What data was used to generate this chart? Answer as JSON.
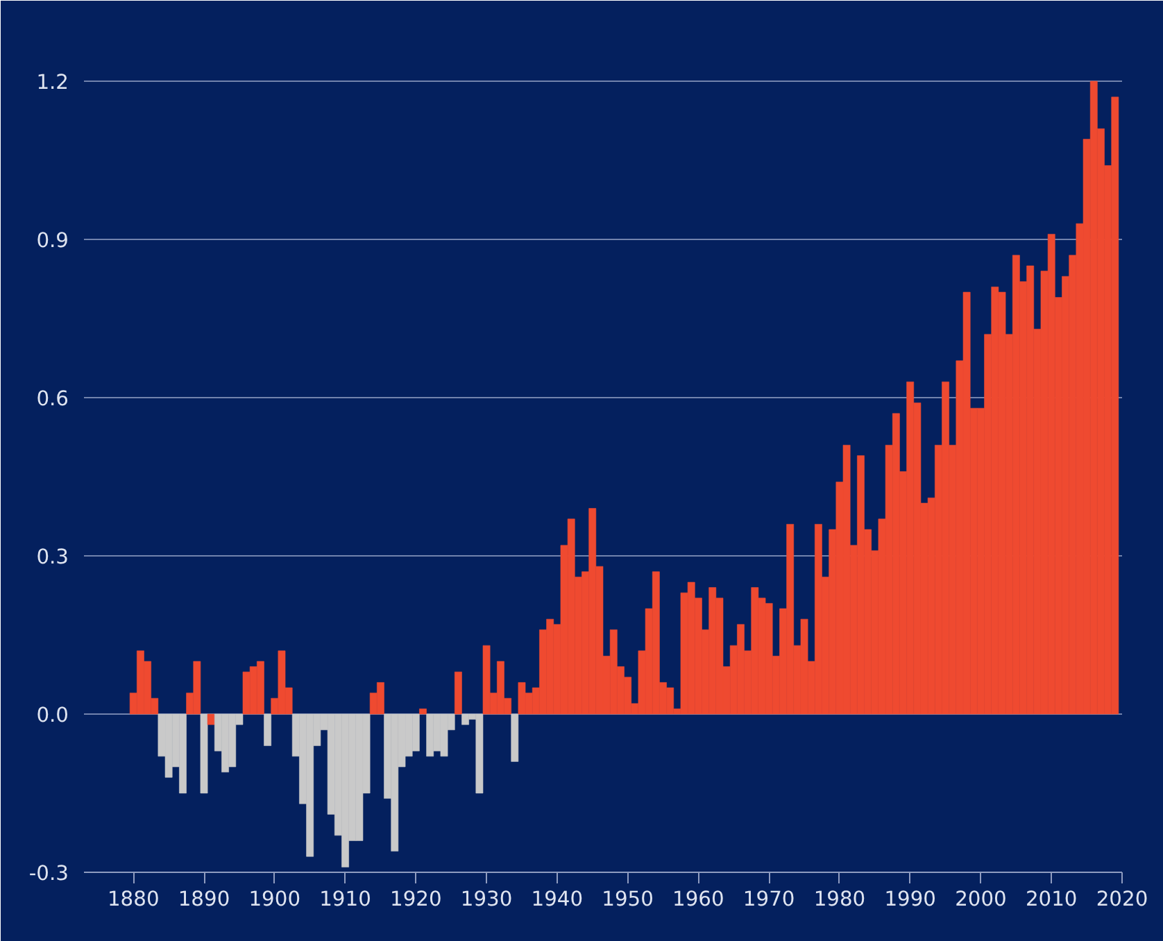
{
  "chart_data": {
    "type": "bar",
    "x": [
      1880,
      1881,
      1882,
      1883,
      1884,
      1885,
      1886,
      1887,
      1888,
      1889,
      1890,
      1891,
      1892,
      1893,
      1894,
      1895,
      1896,
      1897,
      1898,
      1899,
      1900,
      1901,
      1902,
      1903,
      1904,
      1905,
      1906,
      1907,
      1908,
      1909,
      1910,
      1911,
      1912,
      1913,
      1914,
      1915,
      1916,
      1917,
      1918,
      1919,
      1920,
      1921,
      1922,
      1923,
      1924,
      1925,
      1926,
      1927,
      1928,
      1929,
      1930,
      1931,
      1932,
      1933,
      1934,
      1935,
      1936,
      1937,
      1938,
      1939,
      1940,
      1941,
      1942,
      1943,
      1944,
      1945,
      1946,
      1947,
      1948,
      1949,
      1950,
      1951,
      1952,
      1953,
      1954,
      1955,
      1956,
      1957,
      1958,
      1959,
      1960,
      1961,
      1962,
      1963,
      1964,
      1965,
      1966,
      1967,
      1968,
      1969,
      1970,
      1971,
      1972,
      1973,
      1974,
      1975,
      1976,
      1977,
      1978,
      1979,
      1980,
      1981,
      1982,
      1983,
      1984,
      1985,
      1986,
      1987,
      1988,
      1989,
      1990,
      1991,
      1992,
      1993,
      1994,
      1995,
      1996,
      1997,
      1998,
      1999,
      2000,
      2001,
      2002,
      2003,
      2004,
      2005,
      2006,
      2007,
      2008,
      2009,
      2010,
      2011,
      2012,
      2013,
      2014,
      2015,
      2016,
      2017,
      2018,
      2019
    ],
    "values": [
      0.04,
      0.12,
      0.1,
      0.03,
      -0.08,
      -0.12,
      -0.1,
      -0.15,
      0.04,
      0.1,
      -0.15,
      -0.02,
      -0.07,
      -0.11,
      -0.1,
      -0.02,
      0.08,
      0.09,
      0.1,
      -0.06,
      0.03,
      0.12,
      0.05,
      -0.08,
      -0.17,
      -0.27,
      -0.06,
      -0.03,
      -0.19,
      -0.23,
      -0.29,
      -0.24,
      -0.24,
      -0.15,
      0.04,
      0.06,
      -0.16,
      -0.26,
      -0.1,
      -0.08,
      -0.07,
      0.01,
      -0.08,
      -0.07,
      -0.08,
      -0.03,
      0.08,
      -0.02,
      -0.01,
      -0.15,
      0.13,
      0.04,
      0.1,
      0.03,
      -0.09,
      0.06,
      0.04,
      0.05,
      0.16,
      0.18,
      0.17,
      0.32,
      0.37,
      0.26,
      0.27,
      0.39,
      0.28,
      0.11,
      0.16,
      0.09,
      0.07,
      0.02,
      0.12,
      0.2,
      0.27,
      0.06,
      0.05,
      0.01,
      0.23,
      0.25,
      0.22,
      0.16,
      0.24,
      0.22,
      0.09,
      0.13,
      0.17,
      0.12,
      0.24,
      0.22,
      0.21,
      0.11,
      0.2,
      0.36,
      0.13,
      0.18,
      0.1,
      0.36,
      0.26,
      0.35,
      0.44,
      0.51,
      0.32,
      0.49,
      0.35,
      0.31,
      0.37,
      0.51,
      0.57,
      0.46,
      0.63,
      0.59,
      0.4,
      0.41,
      0.51,
      0.63,
      0.51,
      0.67,
      0.8,
      0.58,
      0.58,
      0.72,
      0.81,
      0.8,
      0.72,
      0.87,
      0.82,
      0.85,
      0.73,
      0.84,
      0.91,
      0.79,
      0.83,
      0.87,
      0.93,
      1.09,
      1.2,
      1.11,
      1.04,
      1.17
    ],
    "colors": [
      "#ef4a30",
      "#ef4a30",
      "#ef4a30",
      "#ef4a30",
      "#c9c9c9",
      "#c9c9c9",
      "#c9c9c9",
      "#c9c9c9",
      "#ef4a30",
      "#ef4a30",
      "#c9c9c9",
      "#ef4a30",
      "#c9c9c9",
      "#c9c9c9",
      "#c9c9c9",
      "#c9c9c9",
      "#ef4a30",
      "#ef4a30",
      "#ef4a30",
      "#c9c9c9",
      "#ef4a30",
      "#ef4a30",
      "#ef4a30",
      "#c9c9c9",
      "#c9c9c9",
      "#c9c9c9",
      "#c9c9c9",
      "#c9c9c9",
      "#c9c9c9",
      "#c9c9c9",
      "#c9c9c9",
      "#c9c9c9",
      "#c9c9c9",
      "#c9c9c9",
      "#ef4a30",
      "#ef4a30",
      "#c9c9c9",
      "#c9c9c9",
      "#c9c9c9",
      "#c9c9c9",
      "#c9c9c9",
      "#ef4a30",
      "#c9c9c9",
      "#c9c9c9",
      "#c9c9c9",
      "#c9c9c9",
      "#ef4a30",
      "#c9c9c9",
      "#c9c9c9",
      "#c9c9c9",
      "#ef4a30",
      "#ef4a30",
      "#ef4a30",
      "#ef4a30",
      "#c9c9c9",
      "#ef4a30",
      "#ef4a30",
      "#ef4a30",
      "#ef4a30",
      "#ef4a30",
      "#ef4a30",
      "#ef4a30",
      "#ef4a30",
      "#ef4a30",
      "#ef4a30",
      "#ef4a30",
      "#ef4a30",
      "#ef4a30",
      "#ef4a30",
      "#ef4a30",
      "#ef4a30",
      "#ef4a30",
      "#ef4a30",
      "#ef4a30",
      "#ef4a30",
      "#ef4a30",
      "#ef4a30",
      "#ef4a30",
      "#ef4a30",
      "#ef4a30",
      "#ef4a30",
      "#ef4a30",
      "#ef4a30",
      "#ef4a30",
      "#ef4a30",
      "#ef4a30",
      "#ef4a30",
      "#ef4a30",
      "#ef4a30",
      "#ef4a30",
      "#ef4a30",
      "#ef4a30",
      "#ef4a30",
      "#ef4a30",
      "#ef4a30",
      "#ef4a30",
      "#ef4a30",
      "#ef4a30",
      "#ef4a30",
      "#ef4a30",
      "#ef4a30",
      "#ef4a30",
      "#ef4a30",
      "#ef4a30",
      "#ef4a30",
      "#ef4a30",
      "#ef4a30",
      "#ef4a30",
      "#ef4a30",
      "#ef4a30",
      "#ef4a30",
      "#ef4a30",
      "#ef4a30",
      "#ef4a30",
      "#ef4a30",
      "#ef4a30",
      "#ef4a30",
      "#ef4a30",
      "#ef4a30",
      "#ef4a30",
      "#ef4a30",
      "#ef4a30",
      "#ef4a30",
      "#ef4a30",
      "#ef4a30",
      "#ef4a30",
      "#ef4a30",
      "#ef4a30",
      "#ef4a30",
      "#ef4a30",
      "#ef4a30",
      "#ef4a30",
      "#ef4a30",
      "#ef4a30",
      "#ef4a30",
      "#ef4a30",
      "#ef4a30",
      "#ef4a30",
      "#ef4a30",
      "#ef4a30"
    ],
    "xlim": [
      1873,
      2020
    ],
    "xticks": [
      1880,
      1890,
      1900,
      1910,
      1920,
      1930,
      1940,
      1950,
      1960,
      1970,
      1980,
      1990,
      2000,
      2010,
      2020
    ],
    "ylim": [
      -0.3,
      1.3
    ],
    "yticks": [
      {
        "value": -0.3,
        "label": "-0.3"
      },
      {
        "value": 0,
        "label": "0.0"
      },
      {
        "value": 0.3,
        "label": "0.3"
      },
      {
        "value": 0.6,
        "label": "0.6"
      },
      {
        "value": 0.9,
        "label": "0.9"
      },
      {
        "value": 1.2,
        "label": "1.2"
      }
    ],
    "grid": "y"
  }
}
